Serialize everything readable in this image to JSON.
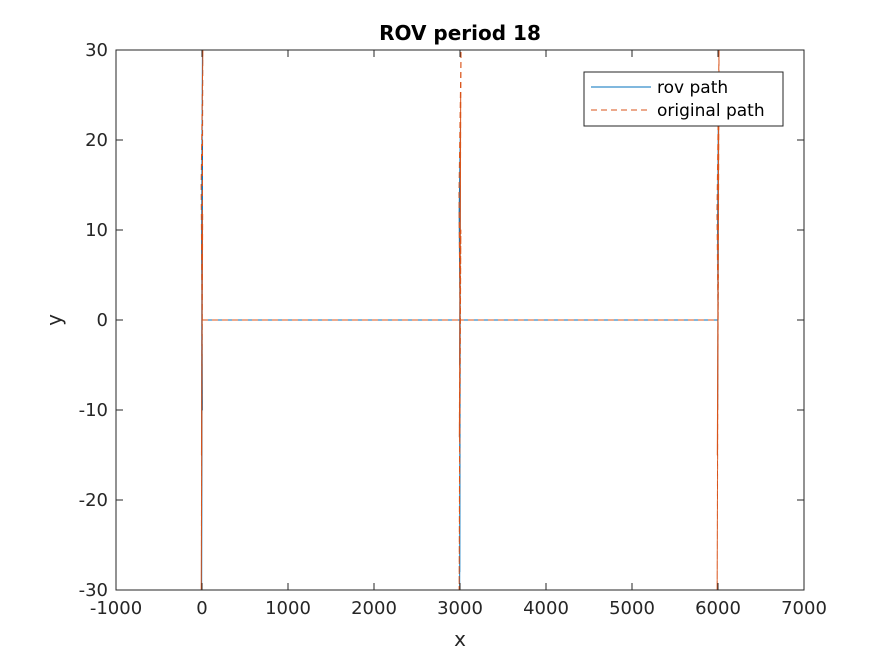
{
  "chart_data": {
    "type": "line",
    "title": "ROV period 18",
    "xlabel": "x",
    "ylabel": "y",
    "xlim": [
      -1000,
      7000
    ],
    "ylim": [
      -30,
      30
    ],
    "xticks": [
      -1000,
      0,
      1000,
      2000,
      3000,
      4000,
      5000,
      6000,
      7000
    ],
    "xtick_labels": [
      "-1000",
      "0",
      "1000",
      "2000",
      "3000",
      "4000",
      "5000",
      "6000",
      "7000"
    ],
    "yticks": [
      -30,
      -20,
      -10,
      0,
      10,
      20,
      30
    ],
    "ytick_labels": [
      "-30",
      "-20",
      "-10",
      "0",
      "10",
      "20",
      "30"
    ],
    "grid": false,
    "legend_position": "top-right",
    "series": [
      {
        "name": "rov path",
        "color": "#0072BD",
        "style": "solid",
        "x": [
          0,
          -5,
          5,
          0,
          -6,
          4,
          -3,
          6,
          -4,
          0,
          5,
          0,
          0,
          1000,
          2000,
          3000,
          2990,
          3005,
          2995,
          3004,
          2998,
          3003,
          2996,
          3002,
          2997,
          3001,
          3000,
          3004,
          3000,
          4000,
          5000,
          6000,
          5995,
          6006,
          5997,
          6005,
          5996,
          6004,
          5998,
          6003,
          5999,
          6002,
          6000
        ],
        "y": [
          0,
          8,
          30,
          15,
          -15,
          10,
          -25,
          20,
          -30,
          5,
          -10,
          0,
          0,
          0,
          0,
          0,
          12,
          21.5,
          -5,
          15,
          -28,
          5,
          -30,
          10,
          -14,
          2,
          0,
          0,
          0,
          0,
          0,
          0,
          10,
          26,
          -8,
          22,
          -10,
          15,
          -5,
          8,
          -2,
          3,
          0
        ]
      },
      {
        "name": "original path",
        "color": "#D95319",
        "style": "dashed",
        "x": [
          0,
          -10,
          10,
          -6,
          8,
          -9,
          9,
          -5,
          6,
          0,
          3000,
          2988,
          3012,
          2992,
          3010,
          2990,
          3008,
          2995,
          3005,
          3000,
          6000,
          5988,
          6012,
          5992,
          6010,
          5990,
          6008,
          5995,
          6005,
          6000
        ],
        "y": [
          0,
          15,
          30,
          -15,
          12,
          -30,
          28,
          -20,
          10,
          0,
          0,
          14,
          30,
          -13,
          10,
          -30,
          25,
          -10,
          5,
          0,
          0,
          12,
          30,
          -15,
          22,
          -30,
          26,
          -8,
          5,
          0
        ]
      }
    ]
  }
}
